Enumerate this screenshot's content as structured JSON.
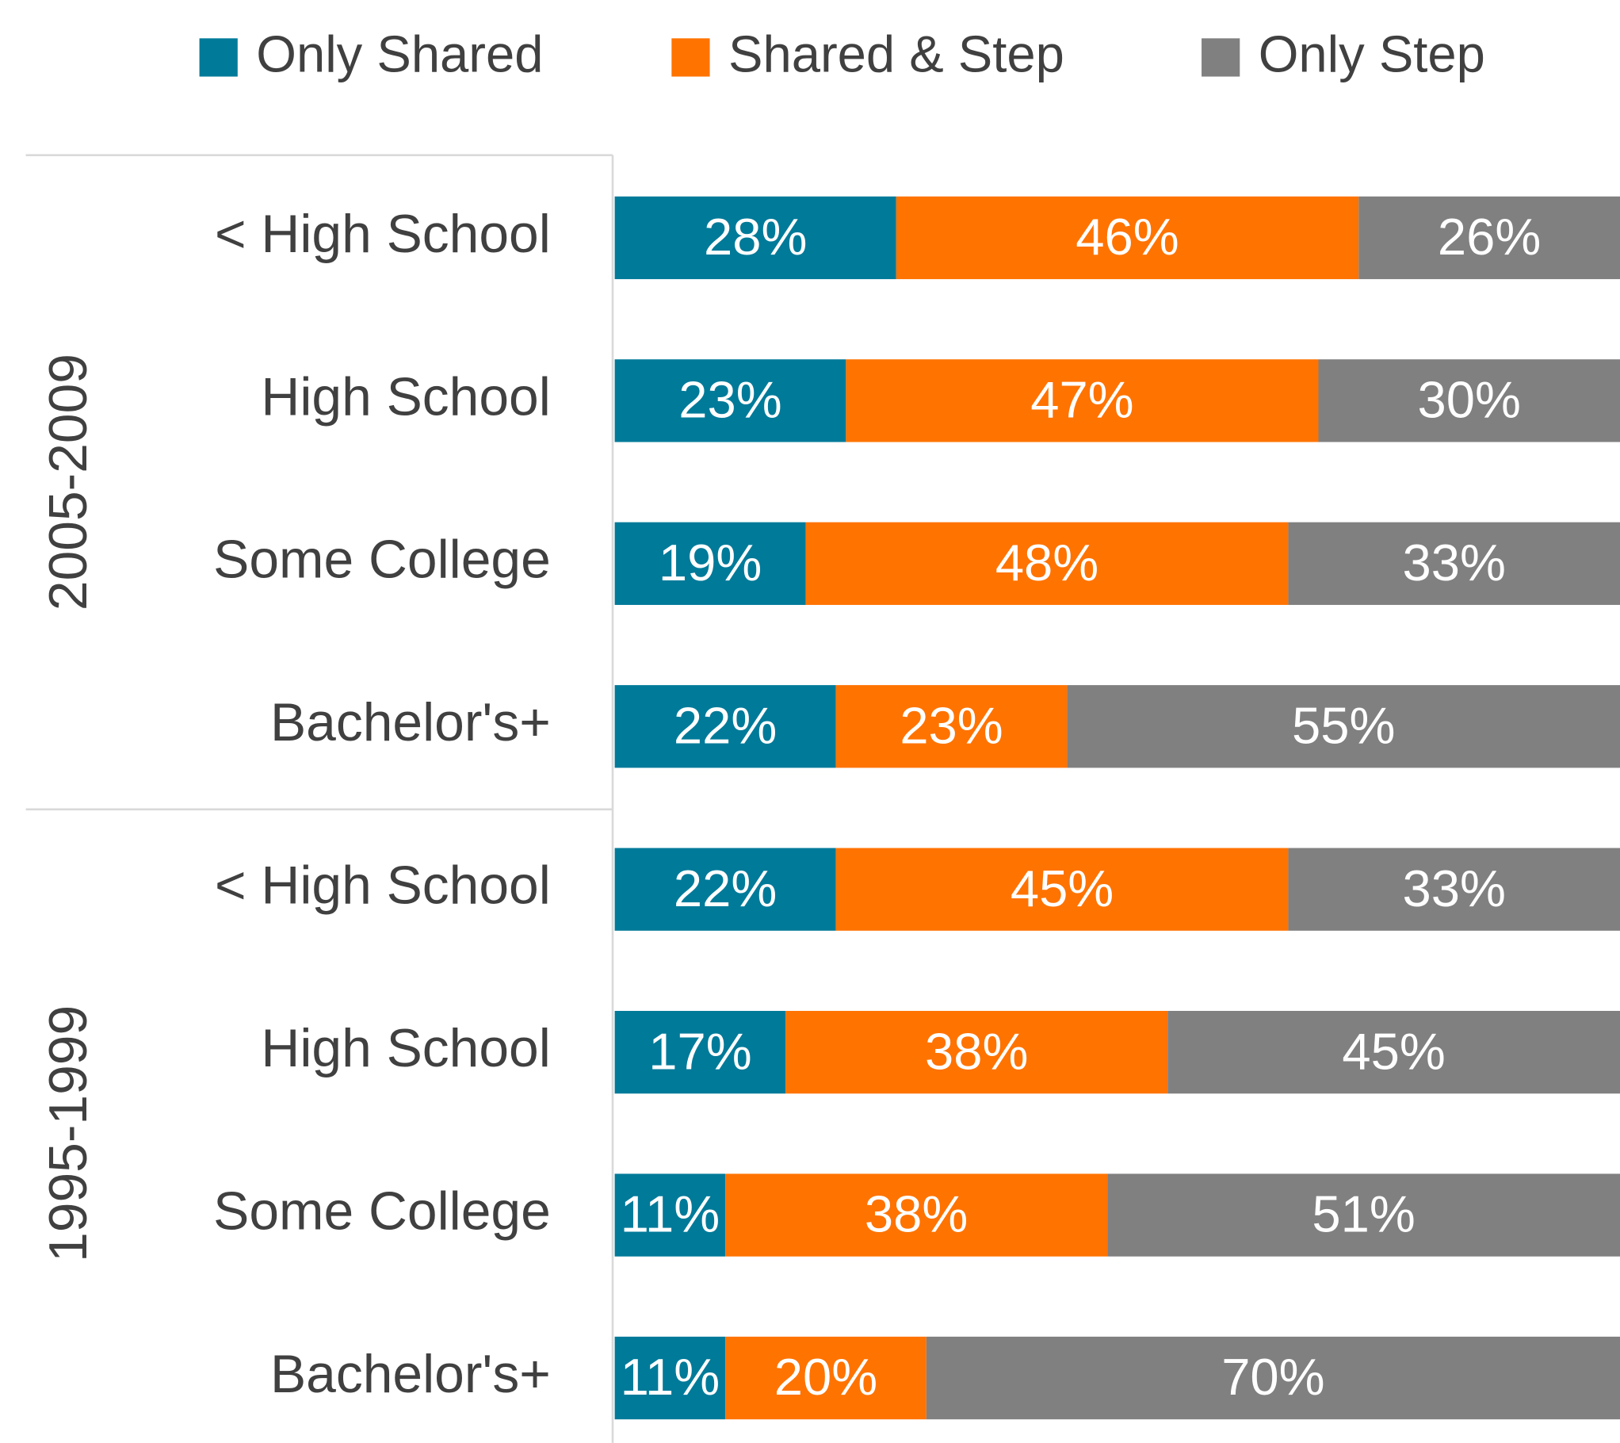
{
  "chart_data": {
    "type": "stacked_barh",
    "categories": [
      "< High School",
      "High School",
      "Some College",
      "Bachelor's+",
      "< High School",
      "High School",
      "Some College",
      "Bachelor's+"
    ],
    "group_labels": [
      "2005-2009",
      "1995-1999"
    ],
    "series": [
      {
        "name": "Only Shared",
        "color": "#007a99",
        "values": [
          28,
          23,
          19,
          22,
          22,
          17,
          11,
          11
        ],
        "value_labels": [
          "28%",
          "23%",
          "19%",
          "22%",
          "22%",
          "17%",
          "11%",
          "11%"
        ]
      },
      {
        "name": "Shared & Step",
        "color": "#ff7300",
        "values": [
          46,
          47,
          48,
          23,
          45,
          38,
          38,
          20
        ],
        "value_labels": [
          "46%",
          "47%",
          "48%",
          "23%",
          "45%",
          "38%",
          "38%",
          "20%"
        ]
      },
      {
        "name": "Only Step",
        "color": "#808080",
        "values": [
          26,
          30,
          33,
          55,
          33,
          45,
          51,
          70
        ],
        "value_labels": [
          "26%",
          "30%",
          "33%",
          "55%",
          "33%",
          "45%",
          "51%",
          "70%"
        ]
      }
    ],
    "xlim": [
      0,
      100
    ],
    "legend": "top"
  }
}
